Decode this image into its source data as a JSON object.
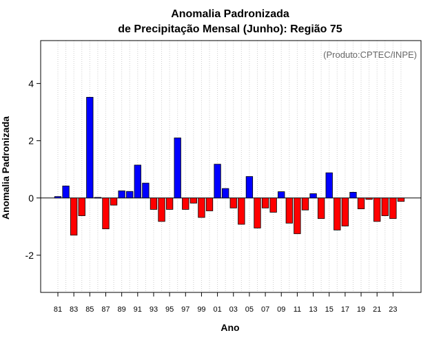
{
  "chart_data": {
    "type": "bar",
    "title_line1": "Anomalia Padronizada",
    "title_line2": "de Precipitação Mensal (Junho): Região 75",
    "xlabel": "Ano",
    "ylabel": "Anomalia Padronizada",
    "credit": "(Produto:CPTEC/INPE)",
    "ylim": [
      -3.3,
      5.5
    ],
    "yticks": [
      -2,
      0,
      2,
      4
    ],
    "ytick_labels": [
      "-2",
      "0",
      "2",
      "4"
    ],
    "categories": [
      "81",
      "82",
      "83",
      "84",
      "85",
      "86",
      "87",
      "88",
      "89",
      "90",
      "91",
      "92",
      "93",
      "94",
      "95",
      "96",
      "97",
      "98",
      "99",
      "00",
      "01",
      "02",
      "03",
      "04",
      "05",
      "06",
      "07",
      "08",
      "09",
      "10",
      "11",
      "12",
      "13",
      "14",
      "15",
      "16",
      "17",
      "18",
      "19",
      "20",
      "21",
      "22",
      "23",
      "24"
    ],
    "xtick_labels": [
      "81",
      "83",
      "85",
      "87",
      "89",
      "91",
      "93",
      "95",
      "97",
      "99",
      "01",
      "03",
      "05",
      "07",
      "09",
      "11",
      "13",
      "15",
      "17",
      "19",
      "21",
      "23"
    ],
    "values": [
      0.05,
      0.42,
      -1.3,
      -0.62,
      3.52,
      0.02,
      -1.08,
      -0.25,
      0.25,
      0.23,
      1.15,
      0.52,
      -0.4,
      -0.82,
      -0.4,
      2.1,
      -0.4,
      -0.18,
      -0.68,
      -0.45,
      1.18,
      0.33,
      -0.35,
      -0.92,
      0.75,
      -1.05,
      -0.35,
      -0.5,
      0.22,
      -0.88,
      -1.25,
      -0.42,
      0.15,
      -0.72,
      0.88,
      -1.12,
      -0.98,
      0.2,
      -0.38,
      -0.05,
      -0.82,
      -0.62,
      -0.72,
      -0.12
    ],
    "positive_color": "#0000ff",
    "negative_color": "#ff0000",
    "grid": "vertical dotted"
  }
}
